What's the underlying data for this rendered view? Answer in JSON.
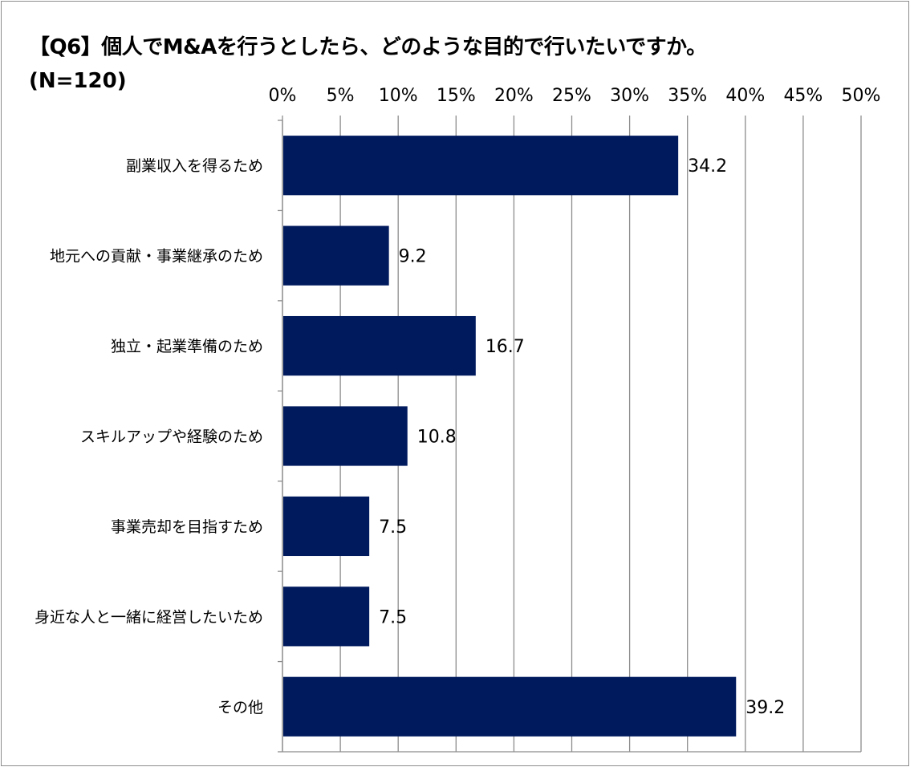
{
  "chart_data": {
    "type": "bar",
    "orientation": "horizontal",
    "title": "【Q6】個人でM&Aを行うとしたら、どのような目的で行いたいですか。",
    "subtitle": "(N=120)",
    "categories": [
      "副業収入を得るため",
      "地元への貢献・事業継承のため",
      "独立・起業準備のため",
      "スキルアップや経験のため",
      "事業売却を目指すため",
      "身近な人と一緒に経営したいため",
      "その他"
    ],
    "values": [
      34.2,
      9.2,
      16.7,
      10.8,
      7.5,
      7.5,
      39.2
    ],
    "value_labels": [
      "34.2",
      "9.2",
      "16.7",
      "10.8",
      "7.5",
      "7.5",
      "39.2"
    ],
    "xlim": [
      0,
      50
    ],
    "xticks": [
      0,
      5,
      10,
      15,
      20,
      25,
      30,
      35,
      40,
      45,
      50
    ],
    "xtick_labels": [
      "0%",
      "5%",
      "10%",
      "15%",
      "20%",
      "25%",
      "30%",
      "35%",
      "40%",
      "45%",
      "50%"
    ],
    "xaxis_position": "top",
    "grid": true,
    "bar_color": "#001a5e",
    "grid_color": "#8c8c8c",
    "legend": "none"
  }
}
